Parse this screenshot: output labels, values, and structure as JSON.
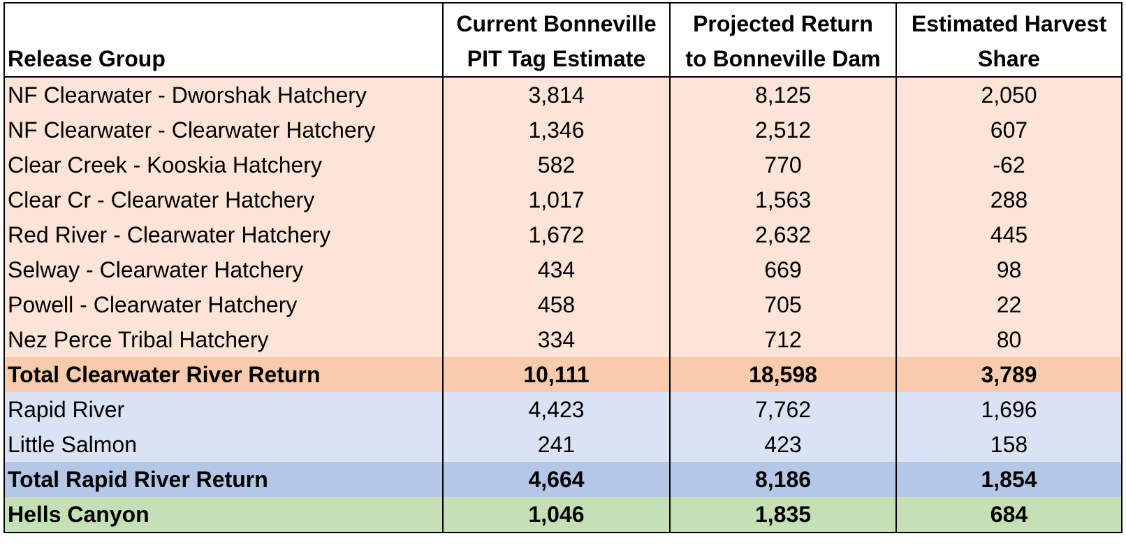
{
  "headers": {
    "release_group": "Release Group",
    "current_line1": "Current Bonneville",
    "current_line2": "PIT Tag Estimate",
    "projected_line1": "Projected Return",
    "projected_line2": "to Bonneville Dam",
    "harvest_line1": "Estimated Harvest",
    "harvest_line2": "Share"
  },
  "rows": [
    {
      "group": "NF Clearwater - Dworshak Hatchery",
      "current": "3,814",
      "projected": "8,125",
      "harvest": "2,050"
    },
    {
      "group": "NF Clearwater - Clearwater Hatchery",
      "current": "1,346",
      "projected": "2,512",
      "harvest": "607"
    },
    {
      "group": "Clear Creek - Kooskia Hatchery",
      "current": "582",
      "projected": "770",
      "harvest": "-62"
    },
    {
      "group": "Clear Cr - Clearwater Hatchery",
      "current": "1,017",
      "projected": "1,563",
      "harvest": "288"
    },
    {
      "group": "Red River - Clearwater Hatchery",
      "current": "1,672",
      "projected": "2,632",
      "harvest": "445"
    },
    {
      "group": "Selway - Clearwater Hatchery",
      "current": "434",
      "projected": "669",
      "harvest": "98"
    },
    {
      "group": "Powell - Clearwater Hatchery",
      "current": "458",
      "projected": "705",
      "harvest": "22"
    },
    {
      "group": "Nez Perce Tribal Hatchery",
      "current": "334",
      "projected": "712",
      "harvest": "80"
    },
    {
      "group": "Total Clearwater River Return",
      "current": "10,111",
      "projected": "18,598",
      "harvest": "3,789"
    },
    {
      "group": "Rapid River",
      "current": "4,423",
      "projected": "7,762",
      "harvest": "1,696"
    },
    {
      "group": "Little Salmon",
      "current": "241",
      "projected": "423",
      "harvest": "158"
    },
    {
      "group": "Total Rapid River Return",
      "current": "4,664",
      "projected": "8,186",
      "harvest": "1,854"
    },
    {
      "group": "Hells Canyon",
      "current": "1,046",
      "projected": "1,835",
      "harvest": "684"
    }
  ],
  "colors": {
    "clearwater_rows": "#fce4d6",
    "clearwater_total": "#f8cbad",
    "rapid_rows": "#dae3f3",
    "rapid_total": "#b4c7e7",
    "hells_canyon": "#c5e0b4"
  }
}
